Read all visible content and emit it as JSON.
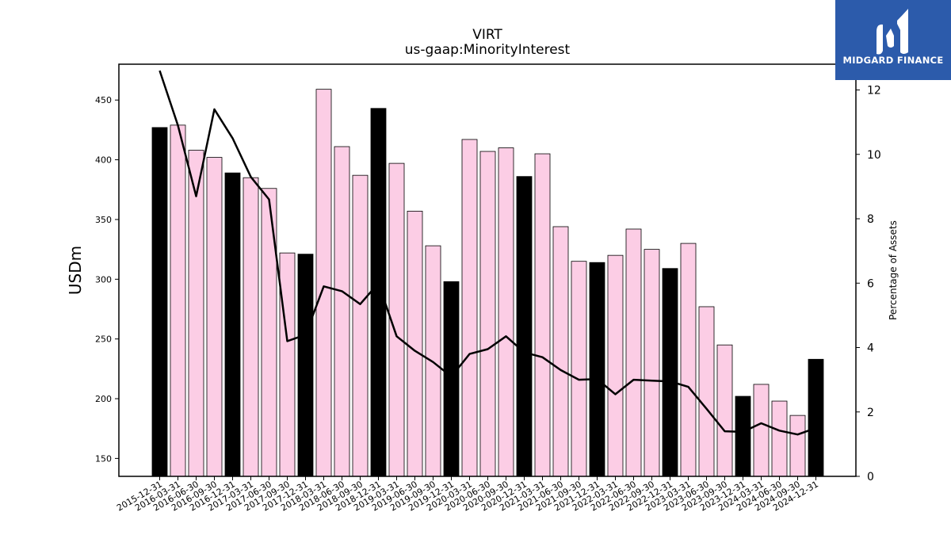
{
  "logo": {
    "text": "MIDGARD FINANCE",
    "icon": "midgard-logo-icon",
    "bg_color": "#2c5bab"
  },
  "chart_data": {
    "type": "bar",
    "title": "VIRT",
    "subtitle": "us-gaap:MinorityInterest",
    "ylabel": "USDm",
    "y2label": "Percentage of Assets",
    "ylim": [
      135,
      480
    ],
    "y2lim": [
      0,
      12.8
    ],
    "yticks": [
      150,
      200,
      250,
      300,
      350,
      400,
      450
    ],
    "y2ticks": [
      0,
      2,
      4,
      6,
      8,
      10,
      12
    ],
    "categories": [
      "2015-12-31",
      "2016-03-31",
      "2016-06-30",
      "2016-09-30",
      "2016-12-31",
      "2017-03-31",
      "2017-06-30",
      "2017-09-30",
      "2017-12-31",
      "2018-03-31",
      "2018-06-30",
      "2018-09-30",
      "2018-12-31",
      "2019-03-31",
      "2019-06-30",
      "2019-09-30",
      "2019-12-31",
      "2020-03-31",
      "2020-06-30",
      "2020-09-30",
      "2020-12-31",
      "2021-03-31",
      "2021-06-30",
      "2021-09-30",
      "2021-12-31",
      "2022-03-31",
      "2022-06-30",
      "2022-09-30",
      "2022-12-31",
      "2023-03-31",
      "2023-06-30",
      "2023-09-30",
      "2023-12-31",
      "2024-03-31",
      "2024-06-30",
      "2024-09-30",
      "2024-12-31"
    ],
    "series": [
      {
        "type": "bar",
        "values": [
          427,
          429,
          408,
          402,
          389,
          385,
          376,
          322,
          321,
          459,
          411,
          387,
          443,
          397,
          357,
          328,
          298,
          417,
          407,
          410,
          386,
          405,
          344,
          315,
          314,
          320,
          342,
          325,
          309,
          330,
          277,
          245,
          202,
          212,
          198,
          186,
          233
        ]
      },
      {
        "type": "line",
        "axis": "right",
        "values": [
          12.6,
          10.9,
          8.7,
          11.4,
          10.5,
          9.3,
          8.6,
          4.2,
          4.4,
          5.9,
          5.75,
          5.35,
          6.0,
          4.35,
          3.9,
          3.55,
          3.1,
          3.8,
          3.95,
          4.35,
          3.85,
          3.7,
          3.3,
          3.0,
          3.02,
          2.55,
          3.0,
          2.97,
          2.95,
          2.78,
          2.1,
          1.4,
          1.38,
          1.65,
          1.42,
          1.3,
          1.5
        ]
      }
    ],
    "bar_colors": {
      "year_end": "#000000",
      "quarter": "#fccde5",
      "edge": "#000000"
    },
    "line_color": "#000000",
    "grid": false
  }
}
